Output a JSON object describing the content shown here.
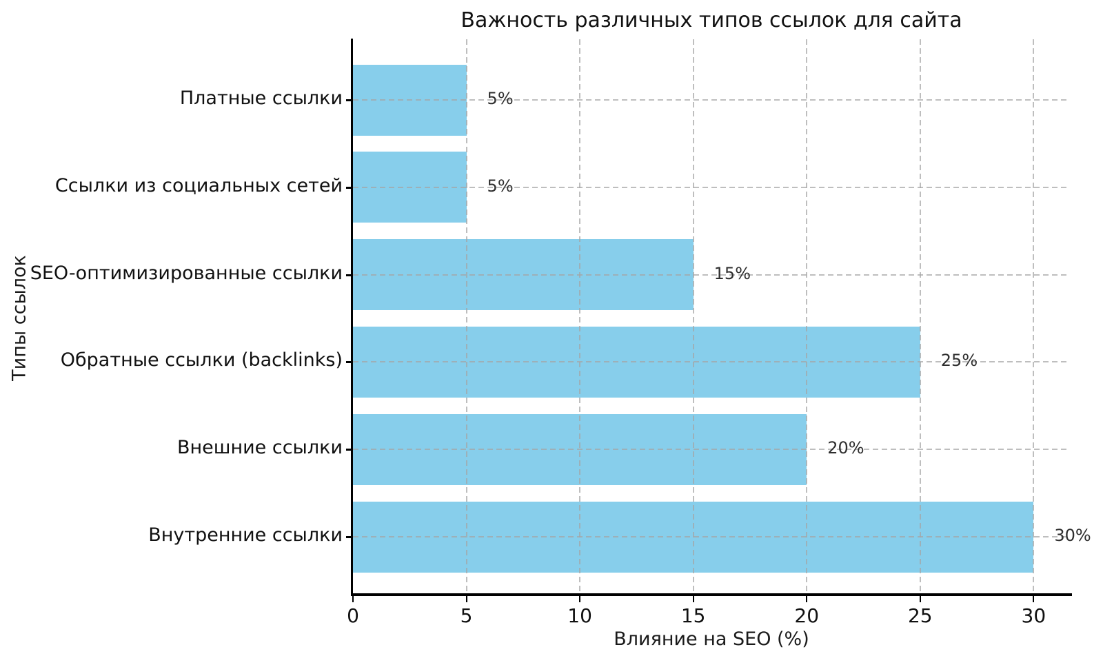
{
  "chart_data": {
    "type": "bar",
    "orientation": "horizontal",
    "title": "Важность различных типов ссылок для сайта",
    "xlabel": "Влияние на SEO (%)",
    "ylabel": "Типы ссылок",
    "categories": [
      "Платные ссылки",
      "Ссылки из социальных сетей",
      "SEO-оптимизированные ссылки",
      "Обратные ссылки (backlinks)",
      "Внешние ссылки",
      "Внутренние ссылки"
    ],
    "values": [
      5,
      5,
      15,
      25,
      20,
      30
    ],
    "value_labels": [
      "5%",
      "5%",
      "15%",
      "25%",
      "20%",
      "30%"
    ],
    "x_ticks": [
      0,
      5,
      10,
      15,
      20,
      25,
      30
    ],
    "xlim": [
      0,
      31.6
    ],
    "grid": true,
    "grid_style": "dashed",
    "legend": "none",
    "bar_color": "#87CEEB",
    "background_color": "#ffffff",
    "axis_color": "#000000",
    "grid_color": "#c4c4c4"
  }
}
